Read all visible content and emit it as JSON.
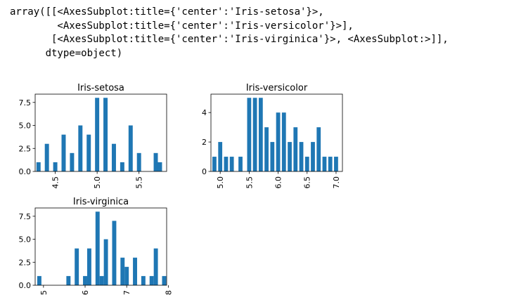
{
  "output_text": [
    "array([[<AxesSubplot:title={'center':'Iris-setosa'}>,",
    "        <AxesSubplot:title={'center':'Iris-versicolor'}>],",
    "       [<AxesSubplot:title={'center':'Iris-virginica'}>, <AxesSubplot:>]],",
    "      dtype=object)"
  ],
  "colors": {
    "bar": "#1f77b4",
    "axis": "#000000"
  },
  "chart_data": [
    {
      "type": "bar",
      "title": "Iris-setosa",
      "xlim": [
        4.26,
        5.83
      ],
      "ylim": [
        0,
        8.4
      ],
      "xticks": [
        4.5,
        5.0,
        5.5
      ],
      "xtick_labels": [
        "4.5",
        "5.0",
        "5.5"
      ],
      "yticks": [
        0,
        2.5,
        5.0,
        7.5
      ],
      "ytick_labels": [
        "0.0",
        "2.5",
        "5.0",
        "7.5"
      ],
      "bar_width": 0.05,
      "x": [
        4.3,
        4.4,
        4.5,
        4.6,
        4.7,
        4.8,
        4.9,
        5.0,
        5.1,
        5.2,
        5.3,
        5.4,
        5.5,
        5.7,
        5.75
      ],
      "values": [
        1,
        3,
        1,
        4,
        2,
        5,
        4,
        8,
        8,
        3,
        1,
        5,
        2,
        2,
        1
      ]
    },
    {
      "type": "bar",
      "title": "Iris-versicolor",
      "xlim": [
        4.84,
        7.11
      ],
      "ylim": [
        0,
        5.25
      ],
      "xticks": [
        5.0,
        5.5,
        6.0,
        6.5,
        7.0
      ],
      "xtick_labels": [
        "5.0",
        "5.5",
        "6.0",
        "6.5",
        "7.0"
      ],
      "yticks": [
        0,
        2,
        4
      ],
      "ytick_labels": [
        "0",
        "2",
        "4"
      ],
      "bar_width": 0.07,
      "x": [
        4.9,
        5.0,
        5.1,
        5.2,
        5.35,
        5.5,
        5.6,
        5.7,
        5.8,
        5.9,
        6.0,
        6.1,
        6.2,
        6.3,
        6.4,
        6.5,
        6.6,
        6.7,
        6.8,
        6.9,
        7.0
      ],
      "values": [
        1,
        2,
        1,
        1,
        1,
        5,
        5,
        5,
        3,
        2,
        4,
        4,
        2,
        3,
        2,
        1,
        2,
        3,
        1,
        1,
        1
      ]
    },
    {
      "type": "bar",
      "title": "Iris-virginica",
      "xlim": [
        4.8,
        7.96
      ],
      "ylim": [
        0,
        8.4
      ],
      "xticks": [
        5,
        6,
        7,
        8
      ],
      "xtick_labels": [
        "5",
        "6",
        "7",
        "8"
      ],
      "yticks": [
        0,
        2.5,
        5.0,
        7.5
      ],
      "ytick_labels": [
        "0.0",
        "2.5",
        "5.0",
        "7.5"
      ],
      "bar_width": 0.1,
      "x": [
        4.9,
        5.6,
        5.8,
        6.0,
        6.1,
        6.3,
        6.4,
        6.5,
        6.7,
        6.9,
        7.0,
        7.2,
        7.4,
        7.6,
        7.7,
        7.9
      ],
      "values": [
        1,
        1,
        4,
        1,
        4,
        8,
        1,
        5,
        7,
        3,
        2,
        3,
        1,
        1,
        4,
        1
      ]
    }
  ]
}
